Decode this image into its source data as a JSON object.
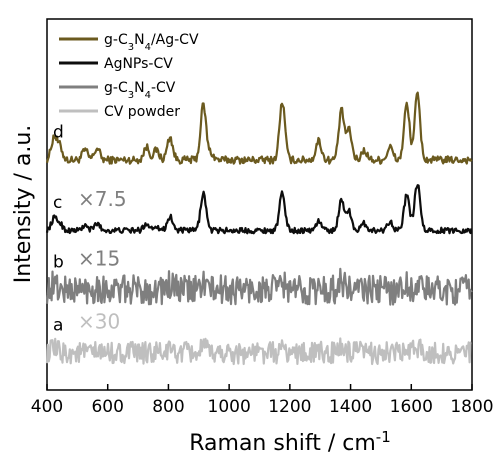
{
  "chart_data": {
    "type": "line",
    "xlabel_main": "Raman shift / cm",
    "xlabel_sup": "-1",
    "ylabel": "Intensity / a.u.",
    "xlim": [
      400,
      1800
    ],
    "xticks": [
      "400",
      "600",
      "800",
      "1000",
      "1200",
      "1400",
      "1600",
      "1800"
    ],
    "grid": false,
    "legend_position": "top-left",
    "series": [
      {
        "name": "g-C3N4/Ag-CV",
        "legend_html": "g-C<tspan baseline-shift=\"sub\" font-size=\"10\">3</tspan>N<tspan baseline-shift=\"sub\" font-size=\"10\">4</tspan>/Ag-CV",
        "color": "#6b5a1f",
        "letter": "d",
        "multiplier": "",
        "baseline": 0.62,
        "amplitude": 0.58,
        "noise": 0.02,
        "peaks": [
          [
            423,
            0.35
          ],
          [
            442,
            0.2
          ],
          [
            525,
            0.15
          ],
          [
            565,
            0.18
          ],
          [
            728,
            0.2
          ],
          [
            760,
            0.15
          ],
          [
            805,
            0.35
          ],
          [
            915,
            0.85
          ],
          [
            940,
            0.1
          ],
          [
            1175,
            0.9
          ],
          [
            1295,
            0.3
          ],
          [
            1370,
            0.75
          ],
          [
            1395,
            0.45
          ],
          [
            1445,
            0.15
          ],
          [
            1530,
            0.2
          ],
          [
            1585,
            0.85
          ],
          [
            1620,
            1.0
          ]
        ]
      },
      {
        "name": "AgNPs-CV",
        "color": "#0d0d0d",
        "letter": "c",
        "multiplier": "×7.5",
        "baseline": 0.43,
        "amplitude": 0.42,
        "noise": 0.015,
        "peaks": [
          [
            423,
            0.25
          ],
          [
            442,
            0.15
          ],
          [
            525,
            0.1
          ],
          [
            565,
            0.15
          ],
          [
            728,
            0.15
          ],
          [
            760,
            0.1
          ],
          [
            805,
            0.3
          ],
          [
            915,
            0.8
          ],
          [
            1175,
            0.8
          ],
          [
            1295,
            0.2
          ],
          [
            1370,
            0.65
          ],
          [
            1395,
            0.4
          ],
          [
            1445,
            0.15
          ],
          [
            1530,
            0.2
          ],
          [
            1585,
            0.75
          ],
          [
            1620,
            1.0
          ]
        ]
      },
      {
        "name": "g-C3N4-CV",
        "legend_html": "g-C<tspan baseline-shift=\"sub\" font-size=\"10\">3</tspan>N<tspan baseline-shift=\"sub\" font-size=\"10\">4</tspan>-CV",
        "color": "#7f7f7f",
        "letter": "b",
        "multiplier": "×15",
        "baseline": 0.27,
        "amplitude": 0.14,
        "noise": 0.08,
        "peaks": [
          [
            423,
            0.3
          ],
          [
            565,
            0.2
          ],
          [
            805,
            0.3
          ],
          [
            915,
            0.5
          ],
          [
            1175,
            0.45
          ],
          [
            1370,
            0.6
          ],
          [
            1585,
            0.35
          ],
          [
            1620,
            0.3
          ]
        ]
      },
      {
        "name": "CV powder",
        "color": "#bfbfbf",
        "letter": "a",
        "multiplier": "×30",
        "baseline": 0.1,
        "amplitude": 0.1,
        "noise": 0.06,
        "peaks": [
          [
            423,
            0.3
          ],
          [
            805,
            0.2
          ],
          [
            915,
            0.4
          ],
          [
            1175,
            0.3
          ],
          [
            1370,
            0.5
          ],
          [
            1620,
            0.6
          ]
        ]
      }
    ]
  }
}
